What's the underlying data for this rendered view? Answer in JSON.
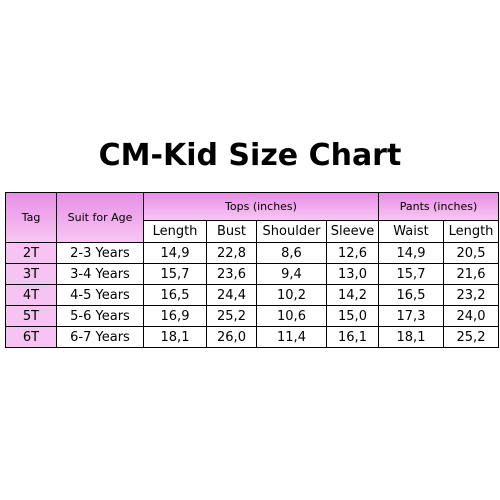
{
  "title": "CM-Kid Size Chart",
  "table": {
    "header": {
      "tag": "Tag",
      "suit": "Suit for Age",
      "tops": "Tops (inches)",
      "pants": "Pants (inches)"
    },
    "subheaders": [
      "Length",
      "Bust",
      "Shoulder",
      "Sleeve",
      "Waist",
      "Length"
    ],
    "rows": [
      [
        "2T",
        "2-3 Years",
        "14,9",
        "22,8",
        "8,6",
        "12,6",
        "14,9",
        "20,5"
      ],
      [
        "3T",
        "3-4 Years",
        "15,7",
        "23,6",
        "9,4",
        "13,0",
        "15,7",
        "21,6"
      ],
      [
        "4T",
        "4-5 Years",
        "16,5",
        "24,4",
        "10,2",
        "14,2",
        "16,5",
        "23,2"
      ],
      [
        "5T",
        "5-6 Years",
        "16,9",
        "25,2",
        "10,6",
        "15,0",
        "17,3",
        "24,0"
      ],
      [
        "6T",
        "6-7 Years",
        "18,1",
        "26,0",
        "11,4",
        "16,1",
        "18,1",
        "25,2"
      ]
    ]
  }
}
